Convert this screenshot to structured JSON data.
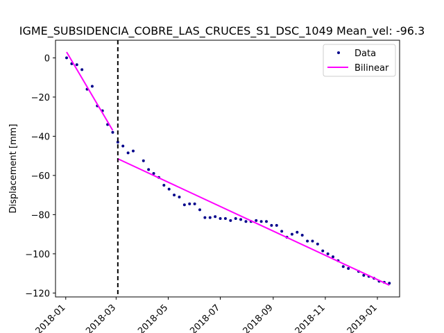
{
  "chart_data": {
    "type": "scatter",
    "title": "IGME_SUBSIDENCIA_COBRE_LAS_CRUCES_S1_DSC_1049     Mean_vel: -96.3",
    "xlabel": "",
    "ylabel": "Displacement [mm]",
    "xlim": [
      "2017-12-20",
      "2019-01-27"
    ],
    "ylim": [
      -122,
      9
    ],
    "x_ticks": [
      "2018-01",
      "2018-03",
      "2018-05",
      "2018-07",
      "2018-09",
      "2018-11",
      "2019-01"
    ],
    "y_ticks": [
      0,
      -20,
      -40,
      -60,
      -80,
      -100,
      -120
    ],
    "grid": false,
    "legend_position": "top-right",
    "colors": {
      "data": "#00008b",
      "bilinear": "#ff00ff",
      "breakpoint": "#000000"
    },
    "breakpoint_x": "2018-03-03",
    "series": [
      {
        "name": "Data",
        "style": "markers",
        "x": [
          "2018-01-02",
          "2018-01-08",
          "2018-01-14",
          "2018-01-20",
          "2018-01-26",
          "2018-02-01",
          "2018-02-07",
          "2018-02-13",
          "2018-02-19",
          "2018-02-25",
          "2018-03-03",
          "2018-03-09",
          "2018-03-15",
          "2018-03-21",
          "2018-04-02",
          "2018-04-08",
          "2018-04-14",
          "2018-04-20",
          "2018-04-26",
          "2018-05-02",
          "2018-05-08",
          "2018-05-14",
          "2018-05-20",
          "2018-05-26",
          "2018-06-01",
          "2018-06-07",
          "2018-06-13",
          "2018-06-19",
          "2018-06-25",
          "2018-07-01",
          "2018-07-07",
          "2018-07-13",
          "2018-07-19",
          "2018-07-25",
          "2018-07-31",
          "2018-08-06",
          "2018-08-12",
          "2018-08-18",
          "2018-08-24",
          "2018-08-30",
          "2018-09-05",
          "2018-09-11",
          "2018-09-17",
          "2018-09-23",
          "2018-09-29",
          "2018-10-05",
          "2018-10-11",
          "2018-10-17",
          "2018-10-23",
          "2018-10-29",
          "2018-11-04",
          "2018-11-10",
          "2018-11-16",
          "2018-11-22",
          "2018-11-28",
          "2018-12-10",
          "2018-12-16",
          "2018-12-22",
          "2018-12-28",
          "2019-01-03",
          "2019-01-09",
          "2019-01-15"
        ],
        "y": [
          0,
          -3,
          -3.5,
          -6,
          -16,
          -14.5,
          -24.5,
          -27,
          -34,
          -38,
          -43,
          -45,
          -48.5,
          -47.5,
          -52.5,
          -57,
          -59,
          -61,
          -65,
          -67,
          -70,
          -71,
          -75,
          -74.5,
          -74.5,
          -77.5,
          -81.5,
          -81.5,
          -81,
          -82,
          -82,
          -83,
          -82,
          -82.5,
          -83.5,
          -83.5,
          -83,
          -83.5,
          -83.5,
          -85.5,
          -85.5,
          -88.5,
          -91.5,
          -90,
          -89,
          -90.5,
          -93.5,
          -93.5,
          -95,
          -98.5,
          -100,
          -101.5,
          -103.5,
          -106.5,
          -107.5,
          -109,
          -111,
          -111.5,
          -112.5,
          -114,
          -114.5,
          -115
        ]
      },
      {
        "name": "Bilinear",
        "style": "line",
        "segments": [
          {
            "x": [
              "2018-01-02",
              "2018-02-25"
            ],
            "y": [
              3,
              -37
            ]
          },
          {
            "x": [
              "2018-03-03",
              "2019-01-15"
            ],
            "y": [
              -51.5,
              -116
            ]
          }
        ]
      }
    ]
  }
}
